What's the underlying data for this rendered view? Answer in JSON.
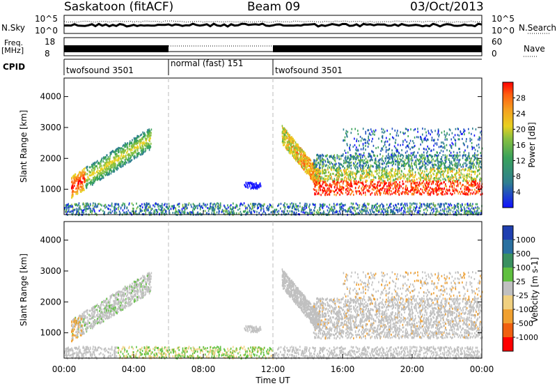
{
  "header": {
    "radar": "Saskatoon (fitACF)",
    "beam": "Beam 09",
    "date": "03/Oct/2013"
  },
  "noise_panel": {
    "left_label": "N.Sky",
    "right_label": "N.Search",
    "left_ticks": [
      "10^5",
      "10^0"
    ],
    "right_ticks": [
      "10^5",
      "10^0"
    ]
  },
  "freq_panel": {
    "left_label_1": "Freq.",
    "left_label_2": "[MHz]",
    "right_label": "Nave",
    "left_ticks": [
      "18",
      "8"
    ],
    "right_ticks": [
      "60",
      "0"
    ]
  },
  "cpid_panel": {
    "label": "CPID",
    "segments": [
      {
        "start_h": 0,
        "end_h": 6,
        "name": "twofsound 3501"
      },
      {
        "start_h": 6,
        "end_h": 12,
        "name": "normal (fast) 151"
      },
      {
        "start_h": 12,
        "end_h": 24,
        "name": "twofsound 3501"
      }
    ]
  },
  "chart_data": [
    {
      "type": "heatmap",
      "panel": "power",
      "ylabel": "Slant Range [km]",
      "ylim": [
        180,
        4600
      ],
      "yticks": [
        1000,
        2000,
        3000,
        4000
      ],
      "xlim": [
        0,
        24
      ],
      "colorbar": {
        "label": "Power [dB]",
        "ticks": [
          "4",
          "8",
          "12",
          "16",
          "20",
          "24",
          "28"
        ],
        "colors": [
          "#1010ff",
          "#2050c0",
          "#2f7f8f",
          "#3aa25a",
          "#88c040",
          "#e8d020",
          "#f5a020",
          "#ff6010",
          "#ff0000"
        ]
      },
      "features": [
        {
          "desc": "ascending band",
          "x": [
            0.5,
            5.0
          ],
          "y": [
            1100,
            2700
          ]
        },
        {
          "desc": "descending arc",
          "x": [
            12.6,
            14.5
          ],
          "y": [
            2600,
            1300
          ]
        },
        {
          "desc": "strong band",
          "x": [
            14.5,
            24.0
          ],
          "y": [
            1000,
            1400
          ]
        }
      ]
    },
    {
      "type": "heatmap",
      "panel": "velocity",
      "ylabel": "Slant Range [km]",
      "ylim": [
        180,
        4600
      ],
      "yticks": [
        1000,
        2000,
        3000,
        4000
      ],
      "xlim": [
        0,
        24
      ],
      "xticks": [
        "00:00",
        "04:00",
        "08:00",
        "12:00",
        "16:00",
        "20:00",
        "00:00"
      ],
      "xlabel": "Time UT",
      "colorbar": {
        "label": "Velocity [m s-1]",
        "ticks": [
          "1000",
          "500",
          "100",
          "25",
          "-25",
          "-100",
          "-500",
          "-1000"
        ],
        "colors": [
          "#1f3fb0",
          "#2a70a0",
          "#3a9060",
          "#60c040",
          "#c0c0c0",
          "#f0d080",
          "#f0a030",
          "#f06010",
          "#ff0000"
        ]
      }
    }
  ]
}
